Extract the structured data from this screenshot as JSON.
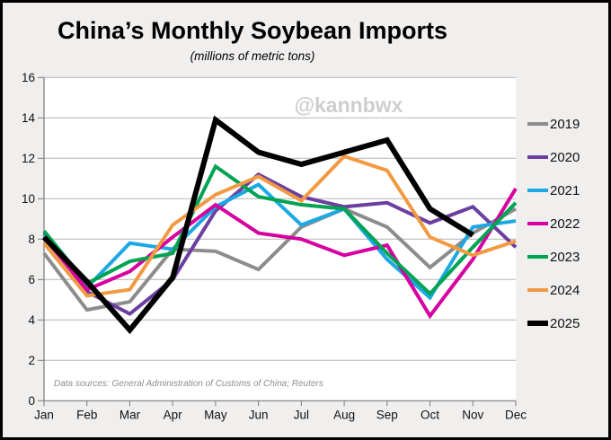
{
  "header": {
    "title": "China’s Monthly Soybean Imports",
    "subtitle": "(millions of metric tons)"
  },
  "watermark": "@kannbwx",
  "source_note": "Data sources: General Administration of Customs of China; Reuters",
  "chart_data": {
    "type": "line",
    "title": "China’s Monthly Soybean Imports",
    "subtitle": "(millions of metric tons)",
    "categories": [
      "Jan",
      "Feb",
      "Mar",
      "Apr",
      "May",
      "Jun",
      "Jul",
      "Aug",
      "Sep",
      "Oct",
      "Nov",
      "Dec"
    ],
    "xlabel": "",
    "ylabel": "",
    "ylim": [
      0,
      16
    ],
    "ytick_step": 2,
    "grid": "horizontal",
    "legend_position": "right",
    "series": [
      {
        "name": "2019",
        "color": "#8c8c8c",
        "line_width": 4,
        "values": [
          7.3,
          4.5,
          4.9,
          7.5,
          7.4,
          6.5,
          8.6,
          9.5,
          8.6,
          6.6,
          8.3,
          9.5
        ]
      },
      {
        "name": "2020",
        "color": "#6b3fa0",
        "line_width": 4,
        "values": [
          8.3,
          5.4,
          4.3,
          6.0,
          9.4,
          11.2,
          10.1,
          9.6,
          9.8,
          8.8,
          9.6,
          7.6
        ]
      },
      {
        "name": "2021",
        "color": "#1ca8e3",
        "line_width": 4,
        "values": [
          8.2,
          5.6,
          7.8,
          7.5,
          9.6,
          10.7,
          8.7,
          9.5,
          7.0,
          5.1,
          8.6,
          8.9
        ]
      },
      {
        "name": "2022",
        "color": "#d5009f",
        "line_width": 4,
        "values": [
          8.1,
          5.5,
          6.4,
          8.1,
          9.7,
          8.3,
          8.0,
          7.2,
          7.7,
          4.2,
          7.0,
          10.5
        ]
      },
      {
        "name": "2023",
        "color": "#00a352",
        "line_width": 4,
        "values": [
          8.4,
          5.8,
          6.9,
          7.3,
          11.6,
          10.1,
          9.7,
          9.5,
          7.3,
          5.3,
          7.6,
          9.8
        ]
      },
      {
        "name": "2024",
        "color": "#f29a43",
        "line_width": 4,
        "values": [
          7.8,
          5.2,
          5.5,
          8.7,
          10.2,
          11.1,
          9.9,
          12.1,
          11.4,
          8.1,
          7.2,
          7.9
        ]
      },
      {
        "name": "2025",
        "color": "#000000",
        "line_width": 6,
        "values": [
          8.1,
          5.9,
          3.5,
          6.1,
          13.9,
          12.3,
          11.7,
          12.3,
          12.9,
          9.5,
          8.2,
          null
        ]
      }
    ]
  }
}
